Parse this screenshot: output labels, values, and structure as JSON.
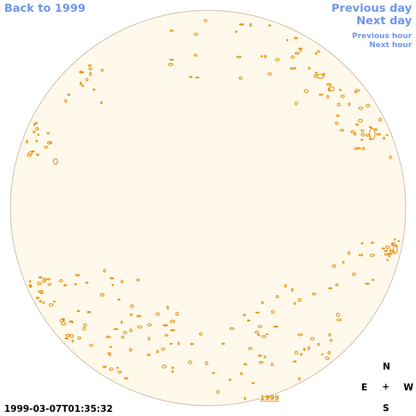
{
  "nav": {
    "back": "Back to 1999",
    "previous_day": "Previous day",
    "next_day": "Next day",
    "previous_hour": "Previous hour",
    "next_hour": "Next hour"
  },
  "timestamp": "1999-03-07T01:35:32",
  "year_link": "1999",
  "compass": {
    "north": "N",
    "east": "E",
    "center": "+",
    "west": "W",
    "south": "S"
  },
  "colors": {
    "disk_fill": "#fff9eb",
    "disk_edge": "#c0b5a5",
    "contour": "#e48a00",
    "nav_link": "#6f95e6"
  }
}
